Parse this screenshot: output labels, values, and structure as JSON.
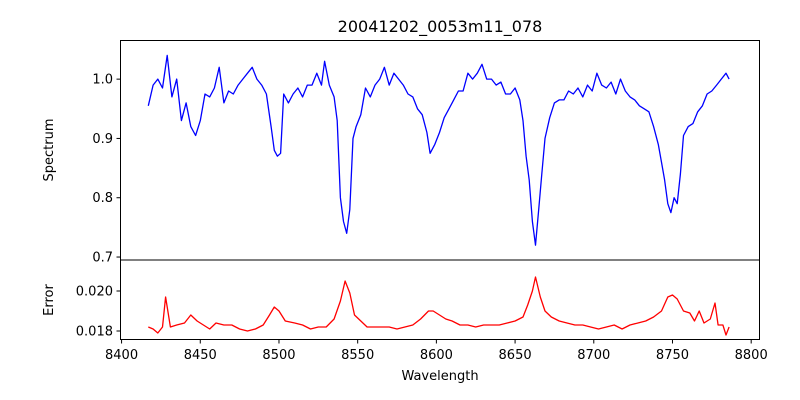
{
  "chart_data": [
    {
      "type": "line",
      "title": "20041202_0053m11_078",
      "xlabel": "",
      "ylabel": "Spectrum",
      "xlim": [
        8399,
        8805.6
      ],
      "ylim": [
        0.695,
        1.066
      ],
      "yticks": [
        0.7,
        0.8,
        0.9,
        1.0
      ],
      "ytick_labels": [
        "0.7",
        "0.8",
        "0.9",
        "1.0"
      ],
      "grid": false,
      "series": [
        {
          "name": "Spectrum",
          "color": "#0000ff",
          "points": [
            [
              8417,
              0.955
            ],
            [
              8420,
              0.99
            ],
            [
              8423,
              1.0
            ],
            [
              8426,
              0.985
            ],
            [
              8429,
              1.04
            ],
            [
              8432,
              0.97
            ],
            [
              8435,
              1.0
            ],
            [
              8438,
              0.93
            ],
            [
              8441,
              0.96
            ],
            [
              8444,
              0.92
            ],
            [
              8447,
              0.905
            ],
            [
              8450,
              0.93
            ],
            [
              8453,
              0.975
            ],
            [
              8456,
              0.97
            ],
            [
              8459,
              0.985
            ],
            [
              8462,
              1.02
            ],
            [
              8465,
              0.96
            ],
            [
              8468,
              0.98
            ],
            [
              8471,
              0.975
            ],
            [
              8474,
              0.99
            ],
            [
              8477,
              1.0
            ],
            [
              8480,
              1.01
            ],
            [
              8483,
              1.02
            ],
            [
              8486,
              1.0
            ],
            [
              8489,
              0.99
            ],
            [
              8492,
              0.975
            ],
            [
              8495,
              0.92
            ],
            [
              8497,
              0.88
            ],
            [
              8499,
              0.87
            ],
            [
              8501,
              0.875
            ],
            [
              8503,
              0.975
            ],
            [
              8506,
              0.96
            ],
            [
              8509,
              0.975
            ],
            [
              8512,
              0.985
            ],
            [
              8515,
              0.97
            ],
            [
              8518,
              0.99
            ],
            [
              8521,
              0.99
            ],
            [
              8524,
              1.01
            ],
            [
              8527,
              0.99
            ],
            [
              8529,
              1.03
            ],
            [
              8532,
              0.99
            ],
            [
              8535,
              0.97
            ],
            [
              8537,
              0.93
            ],
            [
              8539,
              0.8
            ],
            [
              8541,
              0.76
            ],
            [
              8543,
              0.74
            ],
            [
              8545,
              0.78
            ],
            [
              8547,
              0.9
            ],
            [
              8549,
              0.92
            ],
            [
              8552,
              0.94
            ],
            [
              8555,
              0.985
            ],
            [
              8558,
              0.97
            ],
            [
              8561,
              0.99
            ],
            [
              8564,
              1.0
            ],
            [
              8567,
              1.02
            ],
            [
              8570,
              0.99
            ],
            [
              8573,
              1.01
            ],
            [
              8576,
              1.0
            ],
            [
              8579,
              0.99
            ],
            [
              8582,
              0.975
            ],
            [
              8585,
              0.97
            ],
            [
              8588,
              0.95
            ],
            [
              8591,
              0.94
            ],
            [
              8594,
              0.91
            ],
            [
              8596,
              0.875
            ],
            [
              8599,
              0.89
            ],
            [
              8602,
              0.91
            ],
            [
              8605,
              0.935
            ],
            [
              8608,
              0.95
            ],
            [
              8611,
              0.965
            ],
            [
              8614,
              0.98
            ],
            [
              8617,
              0.98
            ],
            [
              8620,
              1.01
            ],
            [
              8623,
              1.0
            ],
            [
              8626,
              1.01
            ],
            [
              8629,
              1.025
            ],
            [
              8632,
              1.0
            ],
            [
              8635,
              1.0
            ],
            [
              8638,
              0.99
            ],
            [
              8641,
              0.995
            ],
            [
              8644,
              0.975
            ],
            [
              8647,
              0.975
            ],
            [
              8650,
              0.985
            ],
            [
              8653,
              0.965
            ],
            [
              8655,
              0.93
            ],
            [
              8657,
              0.87
            ],
            [
              8659,
              0.83
            ],
            [
              8661,
              0.76
            ],
            [
              8663,
              0.72
            ],
            [
              8665,
              0.78
            ],
            [
              8667,
              0.84
            ],
            [
              8669,
              0.9
            ],
            [
              8672,
              0.935
            ],
            [
              8675,
              0.96
            ],
            [
              8678,
              0.965
            ],
            [
              8681,
              0.965
            ],
            [
              8684,
              0.98
            ],
            [
              8687,
              0.975
            ],
            [
              8690,
              0.985
            ],
            [
              8693,
              0.97
            ],
            [
              8696,
              0.99
            ],
            [
              8699,
              0.98
            ],
            [
              8702,
              1.01
            ],
            [
              8705,
              0.99
            ],
            [
              8708,
              0.985
            ],
            [
              8711,
              0.995
            ],
            [
              8714,
              0.975
            ],
            [
              8717,
              1.0
            ],
            [
              8720,
              0.98
            ],
            [
              8723,
              0.97
            ],
            [
              8726,
              0.965
            ],
            [
              8729,
              0.955
            ],
            [
              8732,
              0.95
            ],
            [
              8735,
              0.945
            ],
            [
              8738,
              0.92
            ],
            [
              8741,
              0.89
            ],
            [
              8743,
              0.86
            ],
            [
              8745,
              0.83
            ],
            [
              8747,
              0.79
            ],
            [
              8749,
              0.775
            ],
            [
              8751,
              0.8
            ],
            [
              8753,
              0.79
            ],
            [
              8755,
              0.84
            ],
            [
              8757,
              0.905
            ],
            [
              8760,
              0.92
            ],
            [
              8763,
              0.925
            ],
            [
              8766,
              0.945
            ],
            [
              8769,
              0.955
            ],
            [
              8772,
              0.975
            ],
            [
              8775,
              0.98
            ],
            [
              8778,
              0.99
            ],
            [
              8781,
              1.0
            ],
            [
              8784,
              1.01
            ],
            [
              8786,
              1.0
            ]
          ]
        }
      ]
    },
    {
      "type": "line",
      "xlabel": "Wavelength",
      "ylabel": "Error",
      "xlim": [
        8399,
        8805.6
      ],
      "ylim": [
        0.01755,
        0.02155
      ],
      "xticks": [
        8400,
        8450,
        8500,
        8550,
        8600,
        8650,
        8700,
        8750,
        8800
      ],
      "xtick_labels": [
        "8400",
        "8450",
        "8500",
        "8550",
        "8600",
        "8650",
        "8700",
        "8750",
        "8800"
      ],
      "yticks": [
        0.018,
        0.02
      ],
      "ytick_labels": [
        "0.018",
        "0.020"
      ],
      "grid": false,
      "series": [
        {
          "name": "Error",
          "color": "#ff0000",
          "points": [
            [
              8417,
              0.0182
            ],
            [
              8420,
              0.0181
            ],
            [
              8423,
              0.0179
            ],
            [
              8426,
              0.0182
            ],
            [
              8428,
              0.0197
            ],
            [
              8431,
              0.0182
            ],
            [
              8435,
              0.0183
            ],
            [
              8440,
              0.0184
            ],
            [
              8444,
              0.0188
            ],
            [
              8448,
              0.0185
            ],
            [
              8452,
              0.0183
            ],
            [
              8456,
              0.0181
            ],
            [
              8460,
              0.0184
            ],
            [
              8465,
              0.0183
            ],
            [
              8470,
              0.0183
            ],
            [
              8475,
              0.0181
            ],
            [
              8480,
              0.018
            ],
            [
              8485,
              0.0181
            ],
            [
              8490,
              0.0183
            ],
            [
              8494,
              0.0188
            ],
            [
              8497,
              0.0192
            ],
            [
              8500,
              0.019
            ],
            [
              8504,
              0.0185
            ],
            [
              8510,
              0.0184
            ],
            [
              8515,
              0.0183
            ],
            [
              8520,
              0.0181
            ],
            [
              8525,
              0.0182
            ],
            [
              8530,
              0.0182
            ],
            [
              8535,
              0.0186
            ],
            [
              8539,
              0.0195
            ],
            [
              8542,
              0.0205
            ],
            [
              8545,
              0.0199
            ],
            [
              8548,
              0.0188
            ],
            [
              8552,
              0.0185
            ],
            [
              8556,
              0.0182
            ],
            [
              8560,
              0.0182
            ],
            [
              8565,
              0.0182
            ],
            [
              8570,
              0.0182
            ],
            [
              8575,
              0.0181
            ],
            [
              8580,
              0.0182
            ],
            [
              8585,
              0.0183
            ],
            [
              8590,
              0.0186
            ],
            [
              8595,
              0.019
            ],
            [
              8598,
              0.019
            ],
            [
              8602,
              0.0188
            ],
            [
              8606,
              0.0186
            ],
            [
              8610,
              0.0185
            ],
            [
              8615,
              0.0183
            ],
            [
              8620,
              0.0183
            ],
            [
              8625,
              0.0182
            ],
            [
              8630,
              0.0183
            ],
            [
              8635,
              0.0183
            ],
            [
              8640,
              0.0183
            ],
            [
              8645,
              0.0184
            ],
            [
              8650,
              0.0185
            ],
            [
              8655,
              0.0187
            ],
            [
              8658,
              0.0193
            ],
            [
              8661,
              0.02
            ],
            [
              8663,
              0.0207
            ],
            [
              8666,
              0.0197
            ],
            [
              8669,
              0.019
            ],
            [
              8673,
              0.0187
            ],
            [
              8678,
              0.0185
            ],
            [
              8683,
              0.0184
            ],
            [
              8688,
              0.0183
            ],
            [
              8693,
              0.0183
            ],
            [
              8698,
              0.0182
            ],
            [
              8703,
              0.0181
            ],
            [
              8708,
              0.0182
            ],
            [
              8713,
              0.0183
            ],
            [
              8718,
              0.0181
            ],
            [
              8723,
              0.0183
            ],
            [
              8728,
              0.0184
            ],
            [
              8733,
              0.0185
            ],
            [
              8738,
              0.0187
            ],
            [
              8743,
              0.019
            ],
            [
              8747,
              0.0197
            ],
            [
              8750,
              0.0198
            ],
            [
              8753,
              0.0196
            ],
            [
              8757,
              0.019
            ],
            [
              8761,
              0.0189
            ],
            [
              8764,
              0.0185
            ],
            [
              8767,
              0.019
            ],
            [
              8770,
              0.0184
            ],
            [
              8774,
              0.0186
            ],
            [
              8777,
              0.0194
            ],
            [
              8779,
              0.0183
            ],
            [
              8782,
              0.0183
            ],
            [
              8784,
              0.0178
            ],
            [
              8786,
              0.0182
            ]
          ]
        }
      ]
    }
  ]
}
